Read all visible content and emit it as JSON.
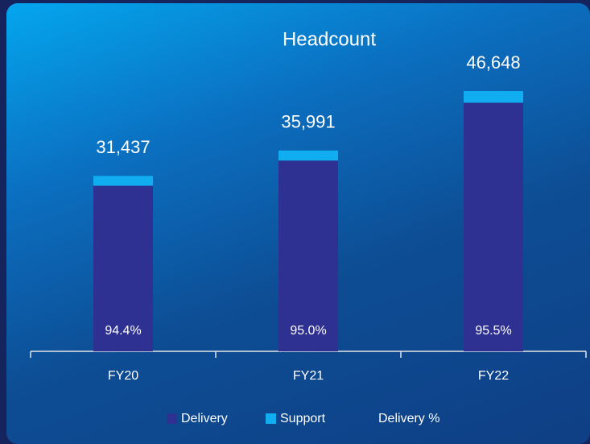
{
  "chart_data": {
    "type": "stacked_bar",
    "title": "Headcount",
    "categories": [
      "FY20",
      "FY21",
      "FY22"
    ],
    "series": [
      {
        "name": "Delivery",
        "color": "#2e3192",
        "values": [
          29677,
          34191,
          44549
        ]
      },
      {
        "name": "Support",
        "color": "#10aef0",
        "values": [
          1760,
          1800,
          2099
        ]
      },
      {
        "name": "Delivery %",
        "values": [
          94.4,
          95.0,
          95.5
        ],
        "value_labels": [
          "94.4%",
          "95.0%",
          "95.5%"
        ]
      }
    ],
    "totals": [
      31437,
      35991,
      46648
    ],
    "total_labels": [
      "31,437",
      "35,991",
      "46,648"
    ],
    "legend": "bottom"
  }
}
